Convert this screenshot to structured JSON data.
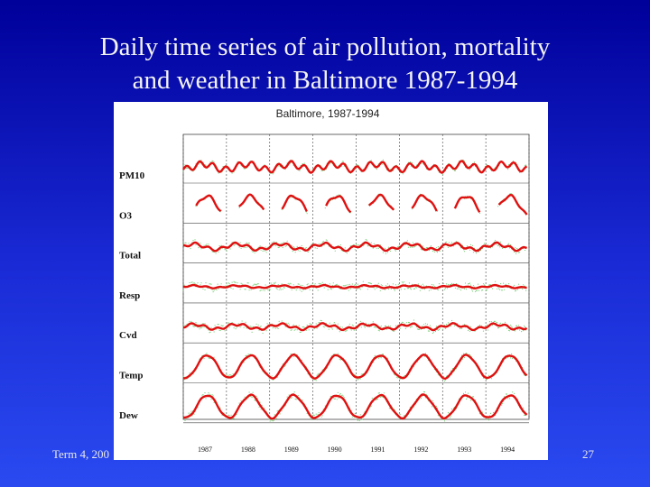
{
  "slide": {
    "title_line1": "Daily time series of air pollution, mortality",
    "title_line2": "and weather in Baltimore 1987-1994",
    "footer_left": "Term 4, 200",
    "page_number": "27"
  },
  "colors": {
    "background": "#1a2bd6",
    "smooth_line": "#e01010",
    "daily_points": "#7ed07e",
    "grid": "#444444"
  },
  "chart_data": {
    "type": "line",
    "title": "Baltimore, 1987-1994",
    "x_tick_labels": [
      "1987",
      "1988",
      "1989",
      "1990",
      "1991",
      "1992",
      "1993",
      "1994"
    ],
    "x_range_years": [
      1987,
      1995
    ],
    "series": [
      {
        "name": "PM10",
        "amplitude": 0.22,
        "phase": 0.2,
        "noise": 0.18,
        "wiggle": 0.25,
        "gaps": []
      },
      {
        "name": "O3",
        "amplitude": 0.85,
        "phase": -0.3,
        "noise": 0.12,
        "wiggle": 0.12,
        "gaps": [
          [
            0.0,
            0.28
          ],
          [
            0.88,
            1.28
          ],
          [
            1.88,
            2.28
          ],
          [
            2.88,
            3.28
          ],
          [
            3.88,
            4.28
          ],
          [
            4.88,
            5.28
          ],
          [
            5.88,
            6.28
          ],
          [
            6.88,
            7.28
          ]
        ]
      },
      {
        "name": "Total",
        "amplitude": 0.22,
        "phase": 1.6,
        "noise": 0.25,
        "wiggle": 0.12,
        "gaps": []
      },
      {
        "name": "Resp",
        "amplitude": 0.08,
        "phase": 1.6,
        "noise": 0.3,
        "wiggle": 0.05,
        "gaps": []
      },
      {
        "name": "Cvd",
        "amplitude": 0.18,
        "phase": 1.6,
        "noise": 0.28,
        "wiggle": 0.1,
        "gaps": []
      },
      {
        "name": "Temp",
        "amplitude": 0.9,
        "phase": -0.35,
        "noise": 0.2,
        "wiggle": 0.05,
        "gaps": []
      },
      {
        "name": "Dew",
        "amplitude": 0.9,
        "phase": -0.35,
        "noise": 0.28,
        "wiggle": 0.06,
        "gaps": []
      }
    ]
  }
}
